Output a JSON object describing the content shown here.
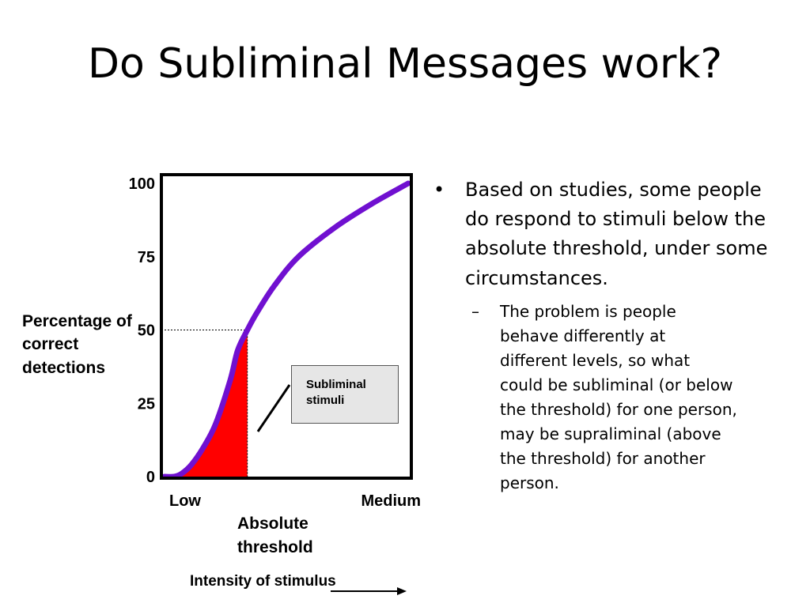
{
  "slide": {
    "title": "Do Subliminal Messages work?",
    "bullets": [
      {
        "marker": "•",
        "text": "Based on studies, some people do respond to stimuli below the absolute threshold, under some circumstances.",
        "sub": [
          {
            "marker": "–",
            "text": "The problem is people behave differently at different levels, so what could be subliminal (or below the threshold) for one person, may be supraliminal (above the threshold) for another person."
          }
        ]
      }
    ]
  },
  "chart_data": {
    "type": "line",
    "title": "",
    "ylabel": "Percentage of correct detections",
    "xlabel": "Intensity of stimulus",
    "ylim": [
      0,
      100
    ],
    "y_ticks": [
      "100",
      "75",
      "50",
      "25",
      "0"
    ],
    "x_ticks": [
      "Low",
      "Medium"
    ],
    "absolute_threshold_label": "Absolute threshold",
    "callout_label": "Subliminal stimuli",
    "colors": {
      "curve": "#7010d0",
      "subliminal_area": "#ff0000",
      "frame": "#000000",
      "callout_bg": "#e6e6e6"
    },
    "series": [
      {
        "x": [
          0,
          0.04,
          0.07,
          0.11,
          0.16,
          0.21,
          0.27,
          0.3,
          0.34,
          0.38,
          0.45,
          0.55,
          0.7,
          0.85,
          1.0
        ],
        "y": [
          0,
          0,
          1,
          4,
          10,
          18,
          33,
          43,
          50,
          56,
          65,
          75,
          85,
          93,
          100
        ]
      }
    ],
    "absolute_threshold": {
      "x": 0.34,
      "y": 50
    }
  }
}
